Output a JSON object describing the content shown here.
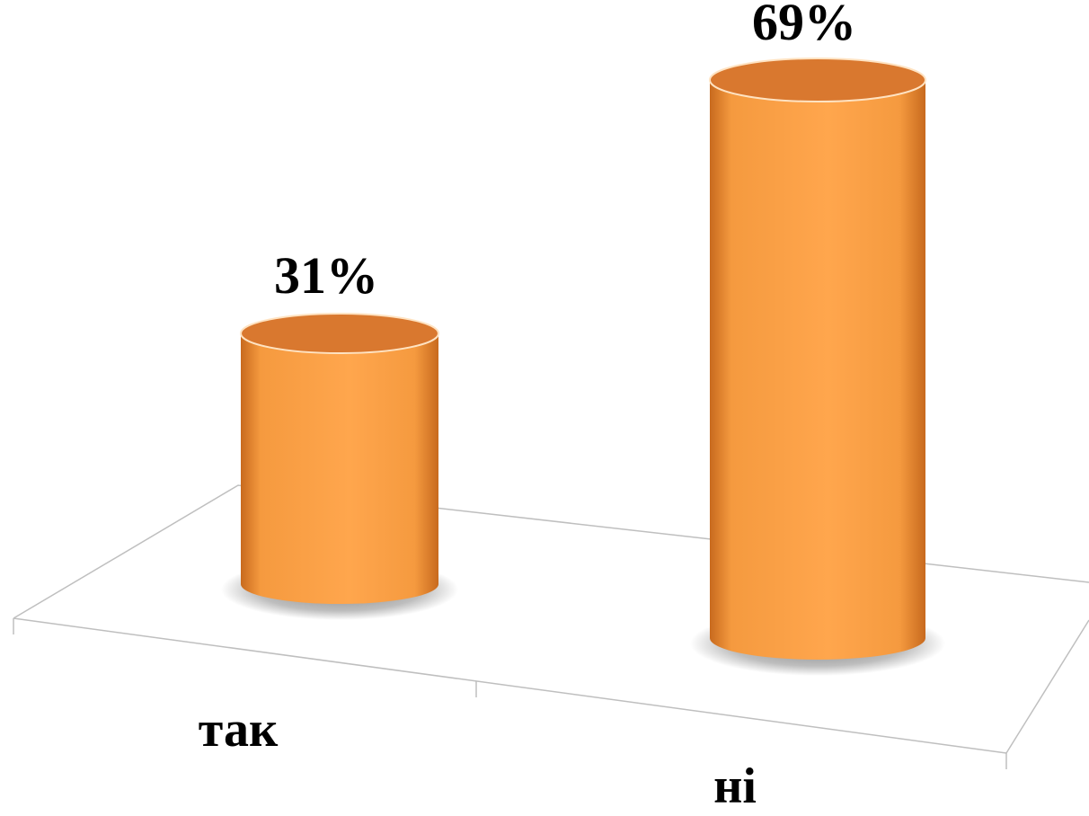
{
  "chart_data": {
    "type": "bar",
    "style": "3d-cylinder",
    "categories": [
      "так",
      "ні"
    ],
    "values": [
      31,
      69
    ],
    "data_labels": [
      "31%",
      "69%"
    ],
    "unit": "%",
    "title": "",
    "xlabel": "",
    "ylabel": "",
    "ylim": [
      0,
      100
    ],
    "grid": false,
    "legend": "none",
    "colors": {
      "bar_light": "#FFA64D",
      "bar_mid": "#F59A3F",
      "bar_dark": "#C86A1E",
      "bar_top": "#D9782F",
      "floor_line": "#BFBFBF",
      "shadow": "#6E6E6E"
    }
  }
}
